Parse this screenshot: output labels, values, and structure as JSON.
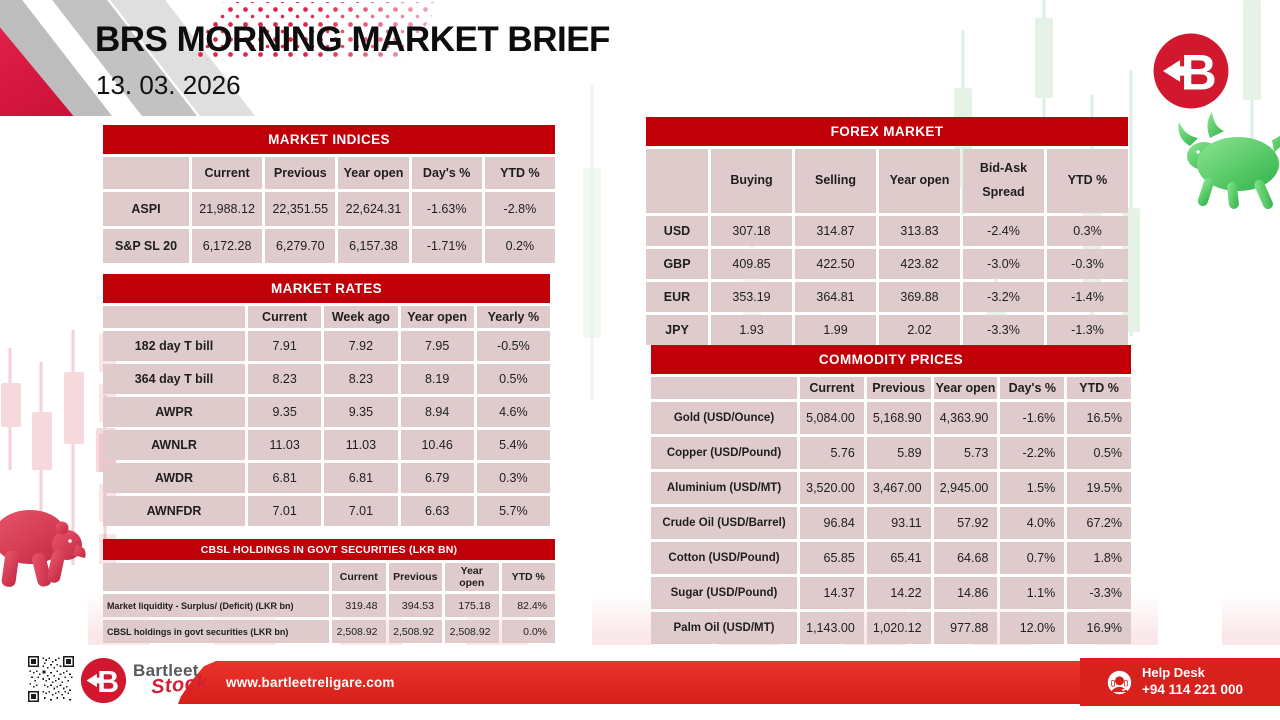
{
  "header": {
    "title": "BRS MORNING MARKET BRIEF",
    "date": "13. 03. 2026"
  },
  "tables": {
    "market_indices": {
      "title": "MARKET INDICES",
      "columns": [
        "",
        "Current",
        "Previous",
        "Year open",
        "Day's %",
        "YTD %"
      ],
      "rows": [
        {
          "label": "ASPI",
          "values": [
            "21,988.12",
            "22,351.55",
            "22,624.31",
            "-1.63%",
            "-2.8%"
          ]
        },
        {
          "label": "S&P SL 20",
          "values": [
            "6,172.28",
            "6,279.70",
            "6,157.38",
            "-1.71%",
            "0.2%"
          ]
        }
      ]
    },
    "market_rates": {
      "title": "MARKET RATES",
      "columns": [
        "",
        "Current",
        "Week ago",
        "Year open",
        "Yearly %"
      ],
      "rows": [
        {
          "label": "182 day T bill",
          "values": [
            "7.91",
            "7.92",
            "7.95",
            "-0.5%"
          ]
        },
        {
          "label": "364 day T bill",
          "values": [
            "8.23",
            "8.23",
            "8.19",
            "0.5%"
          ]
        },
        {
          "label": "AWPR",
          "values": [
            "9.35",
            "9.35",
            "8.94",
            "4.6%"
          ]
        },
        {
          "label": "AWNLR",
          "values": [
            "11.03",
            "11.03",
            "10.46",
            "5.4%"
          ]
        },
        {
          "label": "AWDR",
          "values": [
            "6.81",
            "6.81",
            "6.79",
            "0.3%"
          ]
        },
        {
          "label": "AWNFDR",
          "values": [
            "7.01",
            "7.01",
            "6.63",
            "5.7%"
          ]
        }
      ]
    },
    "cbsl_holdings": {
      "title": "CBSL HOLDINGS IN GOVT SECURITIES (LKR BN)",
      "columns": [
        "",
        "Current",
        "Previous",
        "Year open",
        "YTD %"
      ],
      "rows": [
        {
          "label": "Market liquidity - Surplus/ (Deficit) (LKR bn)",
          "values": [
            "319.48",
            "394.53",
            "175.18",
            "82.4%"
          ]
        },
        {
          "label": "CBSL holdings in govt securities (LKR bn)",
          "values": [
            "2,508.92",
            "2,508.92",
            "2,508.92",
            "0.0%"
          ]
        }
      ]
    },
    "forex_market": {
      "title": "FOREX MARKET",
      "columns": [
        "",
        "Buying",
        "Selling",
        "Year open",
        "Bid-Ask Spread",
        "YTD %"
      ],
      "rows": [
        {
          "label": "USD",
          "values": [
            "307.18",
            "314.87",
            "313.83",
            "-2.4%",
            "0.3%"
          ]
        },
        {
          "label": "GBP",
          "values": [
            "409.85",
            "422.50",
            "423.82",
            "-3.0%",
            "-0.3%"
          ]
        },
        {
          "label": "EUR",
          "values": [
            "353.19",
            "364.81",
            "369.88",
            "-3.2%",
            "-1.4%"
          ]
        },
        {
          "label": "JPY",
          "values": [
            "1.93",
            "1.99",
            "2.02",
            "-3.3%",
            "-1.3%"
          ]
        }
      ]
    },
    "commodity_prices": {
      "title": "COMMODITY PRICES",
      "columns": [
        "",
        "Current",
        "Previous",
        "Year open",
        "Day's %",
        "YTD %"
      ],
      "rows": [
        {
          "label": "Gold (USD/Ounce)",
          "values": [
            "5,084.00",
            "5,168.90",
            "4,363.90",
            "-1.6%",
            "16.5%"
          ]
        },
        {
          "label": "Copper (USD/Pound)",
          "values": [
            "5.76",
            "5.89",
            "5.73",
            "-2.2%",
            "0.5%"
          ]
        },
        {
          "label": "Aluminium (USD/MT)",
          "values": [
            "3,520.00",
            "3,467.00",
            "2,945.00",
            "1.5%",
            "19.5%"
          ]
        },
        {
          "label": "Crude Oil (USD/Barrel)",
          "values": [
            "96.84",
            "93.11",
            "57.92",
            "4.0%",
            "67.2%"
          ]
        },
        {
          "label": "Cotton (USD/Pound)",
          "values": [
            "65.85",
            "65.41",
            "64.68",
            "0.7%",
            "1.8%"
          ]
        },
        {
          "label": "Sugar (USD/Pound)",
          "values": [
            "14.37",
            "14.22",
            "14.86",
            "1.1%",
            "-3.3%"
          ]
        },
        {
          "label": "Palm Oil (USD/MT)",
          "values": [
            "1,143.00",
            "1,020.12",
            "977.88",
            "12.0%",
            "16.9%"
          ]
        }
      ]
    }
  },
  "footer": {
    "website": "www.bartleetreligare.com",
    "brand_name": "Bartleet",
    "brand_sub": "Stock",
    "help_desk_label": "Help Desk",
    "help_desk_phone": "+94 114 221 000"
  },
  "logo": {
    "letter": "B"
  },
  "icons": {
    "brand_badge": "bartleet-b-arrow-badge",
    "help_desk": "headset-icon",
    "qr": "qr-code-icon",
    "bull": "bull-silhouette",
    "bear": "bear-silhouette"
  },
  "colors": {
    "table_header_red": "#c00009",
    "cell_pink": "#e0cbcc",
    "ribbon_red": "#d81f1a",
    "helpdesk_red": "#d7211d",
    "logo_red": "#d2182e",
    "bull_green": "#4cc25e",
    "bear_red": "#d84055"
  }
}
